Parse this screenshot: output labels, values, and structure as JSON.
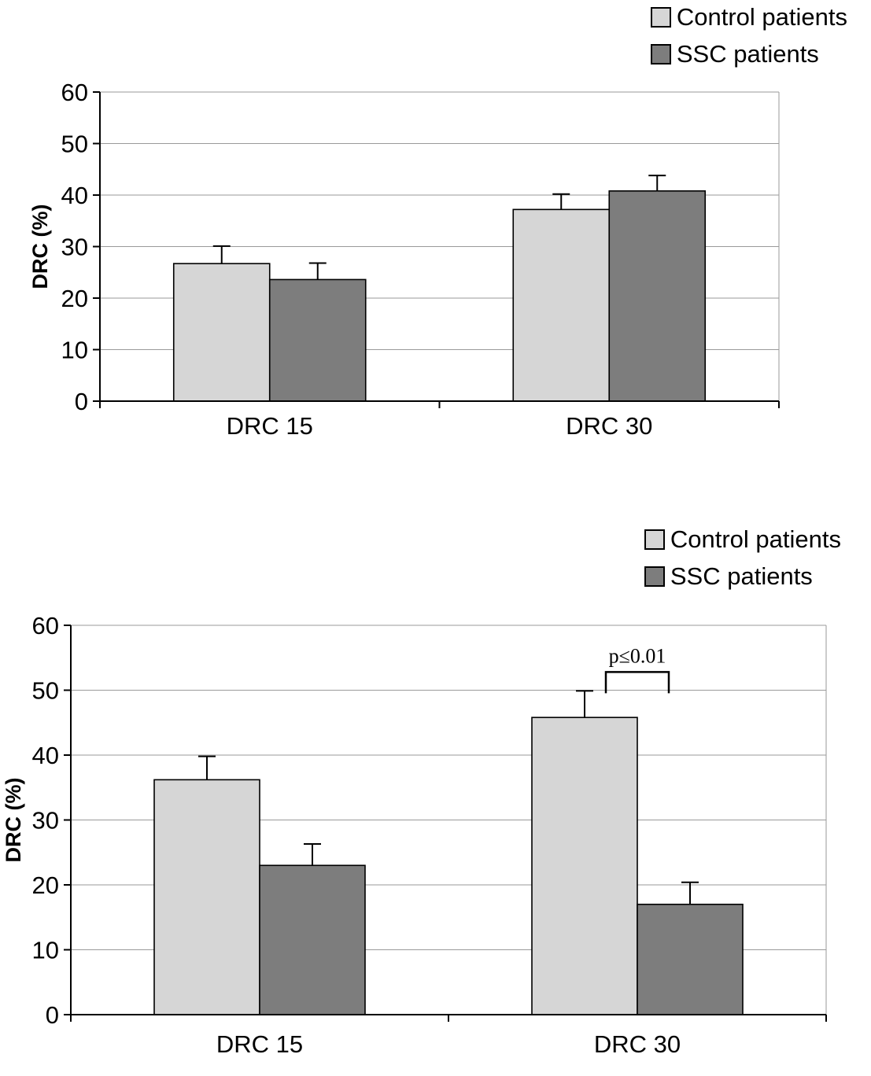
{
  "chart_data": [
    {
      "type": "bar",
      "title": "",
      "categories": [
        "DRC 15",
        "DRC 30"
      ],
      "series": [
        {
          "name": "Control patients",
          "color": "#d6d6d6",
          "values": [
            26.7,
            37.2
          ],
          "errors_plus": [
            3.4,
            3.0
          ]
        },
        {
          "name": "SSC patients",
          "color": "#7d7d7d",
          "values": [
            23.6,
            40.8
          ],
          "errors_plus": [
            3.2,
            3.0
          ]
        }
      ],
      "xlabel": "",
      "ylabel": "DRC (%)",
      "ylim": [
        0,
        60
      ],
      "ytick": 10,
      "grid": "horizontal",
      "legend_position": "top-right"
    },
    {
      "type": "bar",
      "title": "",
      "categories": [
        "DRC 15",
        "DRC 30"
      ],
      "series": [
        {
          "name": "Control patients",
          "color": "#d6d6d6",
          "values": [
            36.2,
            45.8
          ],
          "errors_plus": [
            3.6,
            4.1
          ]
        },
        {
          "name": "SSC patients",
          "color": "#7d7d7d",
          "values": [
            23.0,
            17.0
          ],
          "errors_plus": [
            3.3,
            3.4
          ]
        }
      ],
      "xlabel": "",
      "ylabel": "DRC (%)",
      "ylim": [
        0,
        60
      ],
      "ytick": 10,
      "grid": "horizontal",
      "legend_position": "top-right",
      "annotation": {
        "text": "p≤0.01",
        "category": "DRC 30",
        "between": [
          "Control patients",
          "SSC patients"
        ]
      }
    }
  ]
}
